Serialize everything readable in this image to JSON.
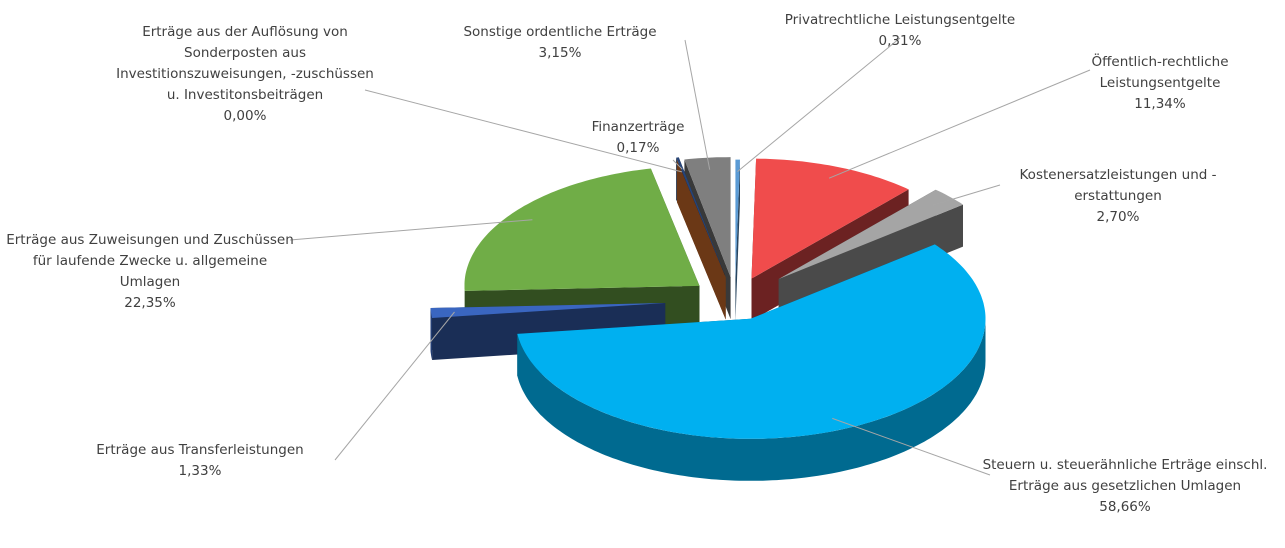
{
  "chart_data": {
    "type": "pie",
    "categories": [
      "Privatrechtliche Leistungsentgelte",
      "Öffentlich-rechtliche Leistungsentgelte",
      "Kostenersatzleistungen und -erstattungen",
      "Steuern u. steuerähnliche Erträge einschl. Erträge aus gesetzlichen Umlagen",
      "Erträge aus Transferleistungen",
      "Erträge aus Zuweisungen und Zuschüssen für laufende Zwecke u. allgemeine Umlagen",
      "Erträge aus der Auflösung von Sonderposten aus Investitionszuweisungen, -zuschüssen u. Investitonsbeiträgen",
      "Finanzerträge",
      "Sonstige ordentliche Erträge"
    ],
    "values": [
      0.31,
      11.34,
      2.7,
      58.66,
      1.33,
      22.35,
      0.0,
      0.17,
      3.15
    ],
    "value_labels": [
      "0,31%",
      "11,34%",
      "2,70%",
      "58,66%",
      "1,33%",
      "22,35%",
      "0,00%",
      "0,17%",
      "3,15%"
    ],
    "colors": [
      "#5b9bd5",
      "#f04c4c",
      "#a5a5a5",
      "#00b0f0",
      "#3a66c0",
      "#70ad47",
      "#ed7d31",
      "#264478",
      "#7f7f7f"
    ]
  }
}
